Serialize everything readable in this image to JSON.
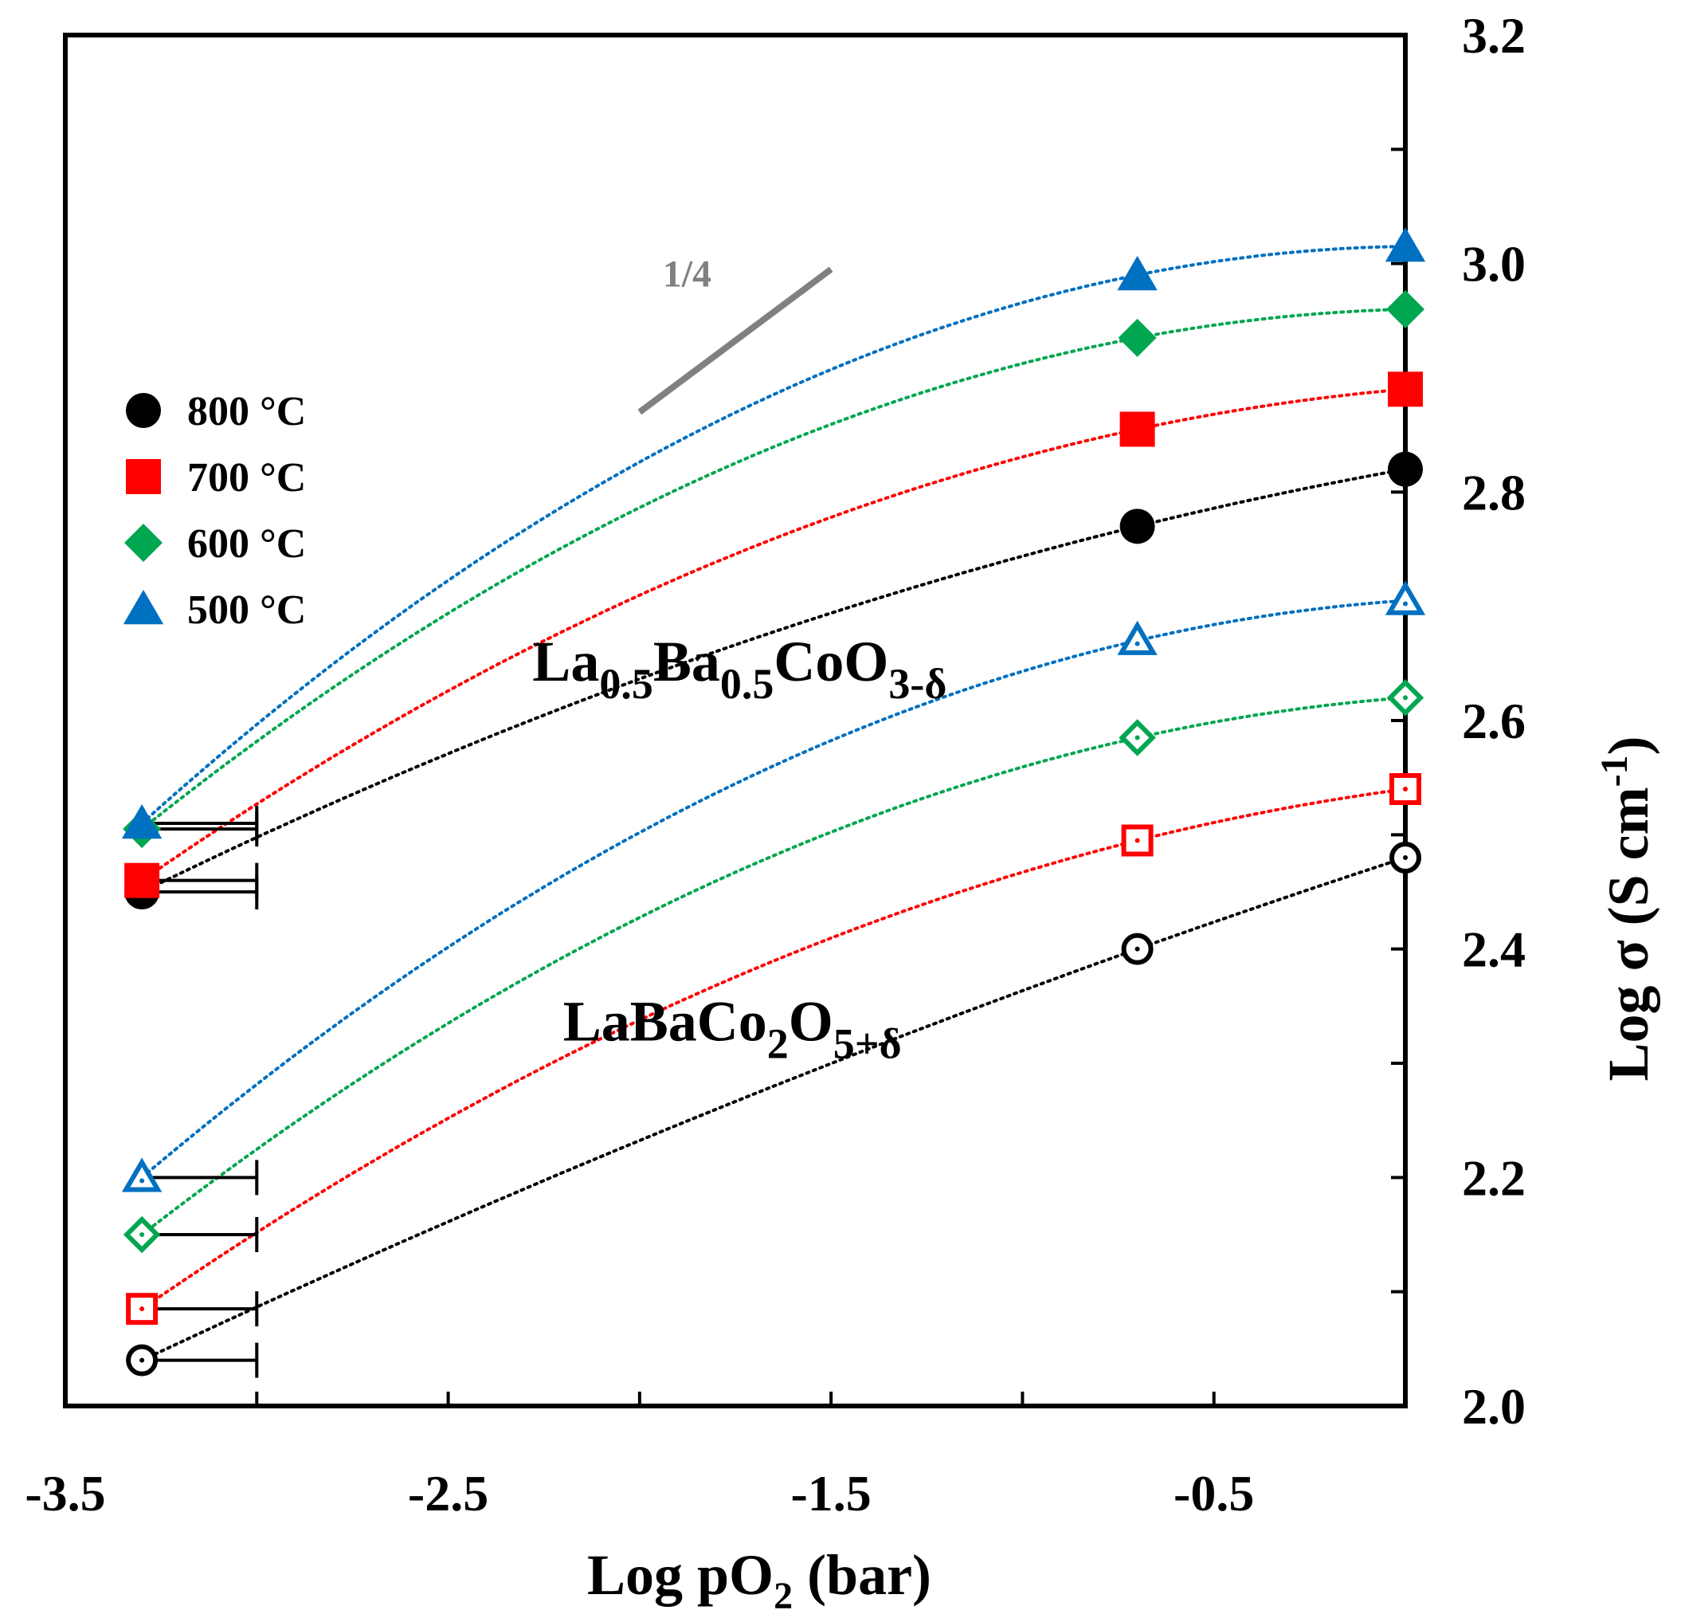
{
  "chart_data": {
    "type": "scatter",
    "title": "",
    "xlabel": {
      "main": "Log pO",
      "sub": "2",
      "tail": " (bar)"
    },
    "ylabel": {
      "main": "Log σ (S cm",
      "sup": "-1",
      "tail": ")"
    },
    "xlim": [
      -3.5,
      0
    ],
    "ylim": [
      2.0,
      3.2
    ],
    "x_ticks": [
      -3.5,
      -3.0,
      -2.5,
      -2.0,
      -1.5,
      -1.0,
      -0.5,
      0.0
    ],
    "x_tick_labels": [
      {
        "value": -3.5,
        "label": "-3.5"
      },
      {
        "value": -2.5,
        "label": "-2.5"
      },
      {
        "value": -1.5,
        "label": "-1.5"
      },
      {
        "value": -0.5,
        "label": "-0.5"
      }
    ],
    "y_ticks": [
      2.0,
      2.1,
      2.2,
      2.3,
      2.4,
      2.5,
      2.6,
      2.7,
      2.8,
      2.9,
      3.0,
      3.1,
      3.2
    ],
    "y_tick_labels": [
      {
        "value": 2.0,
        "label": "2.0"
      },
      {
        "value": 2.2,
        "label": "2.2"
      },
      {
        "value": 2.4,
        "label": "2.4"
      },
      {
        "value": 2.6,
        "label": "2.6"
      },
      {
        "value": 2.8,
        "label": "2.8"
      },
      {
        "value": 3.0,
        "label": "3.0"
      },
      {
        "value": 3.2,
        "label": "3.2"
      }
    ],
    "grid": false,
    "legend_position": "upper-left",
    "legend": [
      {
        "label": "800 °C",
        "marker": "circle",
        "color": "#000000"
      },
      {
        "label": "700 °C",
        "marker": "square",
        "color": "#ff0000"
      },
      {
        "label": "600 °C",
        "marker": "diamond",
        "color": "#00a650"
      },
      {
        "label": "500 °C",
        "marker": "triangle",
        "color": "#0070c0"
      }
    ],
    "annotations": [
      {
        "id": "la05",
        "parts": [
          {
            "t": "La",
            "s": "n"
          },
          {
            "t": "0.5",
            "s": "sub"
          },
          {
            "t": "Ba",
            "s": "n"
          },
          {
            "t": "0.5",
            "s": "sub"
          },
          {
            "t": "CoO",
            "s": "n"
          },
          {
            "t": "3-δ",
            "s": "sub"
          }
        ],
        "x": -2.28,
        "y": 2.635
      },
      {
        "id": "labaco",
        "parts": [
          {
            "t": "LaBaCo",
            "s": "n"
          },
          {
            "t": "2",
            "s": "sub"
          },
          {
            "t": "O",
            "s": "n"
          },
          {
            "t": "5+δ",
            "s": "sub"
          }
        ],
        "x": -2.2,
        "y": 2.32
      }
    ],
    "slope_indicator": {
      "label": "1/4",
      "x1": -2.0,
      "y1": 2.87,
      "x2": -1.5,
      "y2": 2.995,
      "label_x": -1.94,
      "label_y": 2.98
    },
    "series": [
      {
        "name": "800 °C",
        "material": "La0.5Ba0.5CoO3-δ",
        "marker": "circle",
        "filled": true,
        "color": "#000000",
        "x": [
          -3.3,
          -0.7,
          0.0
        ],
        "y": [
          2.45,
          2.77,
          2.82
        ],
        "xerr_plus": [
          0.3,
          0,
          0
        ]
      },
      {
        "name": "700 °C",
        "material": "La0.5Ba0.5CoO3-δ",
        "marker": "square",
        "filled": true,
        "color": "#ff0000",
        "x": [
          -3.3,
          -0.7,
          0.0
        ],
        "y": [
          2.46,
          2.855,
          2.89
        ],
        "xerr_plus": [
          0.3,
          0,
          0
        ]
      },
      {
        "name": "600 °C",
        "material": "La0.5Ba0.5CoO3-δ",
        "marker": "diamond",
        "filled": true,
        "color": "#00a650",
        "x": [
          -3.3,
          -0.7,
          0.0
        ],
        "y": [
          2.505,
          2.935,
          2.96
        ],
        "xerr_plus": [
          0.3,
          0,
          0
        ]
      },
      {
        "name": "500 °C",
        "material": "La0.5Ba0.5CoO3-δ",
        "marker": "triangle",
        "filled": true,
        "color": "#0070c0",
        "x": [
          -3.3,
          -0.7,
          0.0
        ],
        "y": [
          2.51,
          2.99,
          3.015
        ],
        "xerr_plus": [
          0.3,
          0,
          0
        ]
      },
      {
        "name": "800 °C",
        "material": "LaBaCo2O5+δ",
        "marker": "circle",
        "filled": false,
        "color": "#000000",
        "x": [
          -3.3,
          -0.7,
          0.0
        ],
        "y": [
          2.04,
          2.4,
          2.48
        ],
        "xerr_plus": [
          0.3,
          0,
          0
        ]
      },
      {
        "name": "700 °C",
        "material": "LaBaCo2O5+δ",
        "marker": "square",
        "filled": false,
        "color": "#ff0000",
        "x": [
          -3.3,
          -0.7,
          0.0
        ],
        "y": [
          2.085,
          2.495,
          2.54
        ],
        "xerr_plus": [
          0.3,
          0,
          0
        ]
      },
      {
        "name": "600 °C",
        "material": "LaBaCo2O5+δ",
        "marker": "diamond",
        "filled": false,
        "color": "#00a650",
        "x": [
          -3.3,
          -0.7,
          0.0
        ],
        "y": [
          2.15,
          2.585,
          2.62
        ],
        "xerr_plus": [
          0.3,
          0,
          0
        ]
      },
      {
        "name": "500 °C",
        "material": "LaBaCo2O5+δ",
        "marker": "triangle",
        "filled": false,
        "color": "#0070c0",
        "x": [
          -3.3,
          -0.7,
          0.0
        ],
        "y": [
          2.2,
          2.67,
          2.705
        ],
        "xerr_plus": [
          0.3,
          0,
          0
        ]
      }
    ]
  }
}
